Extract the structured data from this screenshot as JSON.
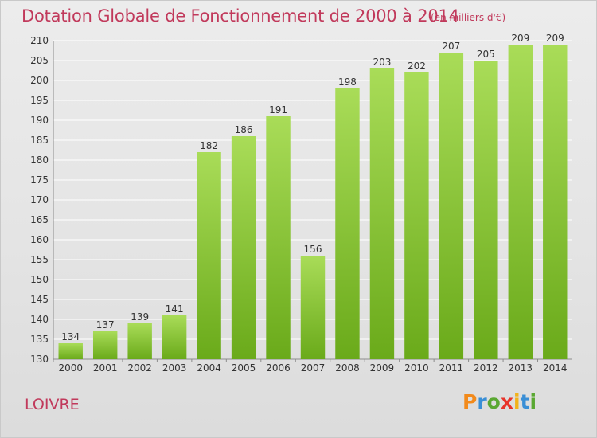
{
  "title": "Dotation Globale de Fonctionnement de 2000 à 2014",
  "unit_note": "(en milliers d'€)",
  "commune": "LOIVRE",
  "brand": {
    "letters": [
      "P",
      "r",
      "o",
      "x",
      "i",
      "t",
      "i"
    ],
    "colors": [
      "#f28a1b",
      "#3a8fd6",
      "#5aa832",
      "#e8342b",
      "#f2b21b",
      "#3a8fd6",
      "#5aa832"
    ]
  },
  "colors": {
    "bar_light": "#a9dc58",
    "bar_dark": "#6aaa1a",
    "title": "#c1395b",
    "grid": "#ffffff"
  },
  "chart_data": {
    "type": "bar",
    "title": "Dotation Globale de Fonctionnement de 2000 à 2014",
    "categories": [
      "2000",
      "2001",
      "2002",
      "2003",
      "2004",
      "2005",
      "2006",
      "2007",
      "2008",
      "2009",
      "2010",
      "2011",
      "2012",
      "2013",
      "2014"
    ],
    "values": [
      134,
      137,
      139,
      141,
      182,
      186,
      191,
      156,
      198,
      203,
      202,
      207,
      205,
      209,
      209
    ],
    "ylim": [
      130,
      210
    ],
    "yticks": [
      130,
      135,
      140,
      145,
      150,
      155,
      160,
      165,
      170,
      175,
      180,
      185,
      190,
      195,
      200,
      205,
      210
    ],
    "grid": true,
    "data_labels": true
  }
}
